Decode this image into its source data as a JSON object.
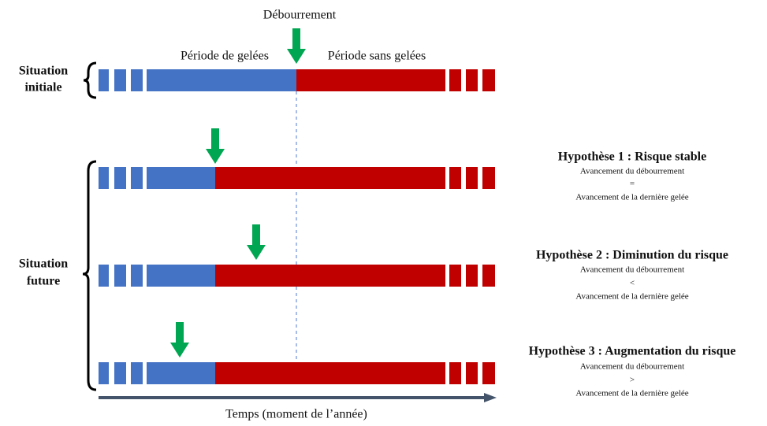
{
  "header": {
    "top_label": "Débourrement",
    "left_period": "Période de gelées",
    "right_period": "Période sans gelées"
  },
  "situations": [
    {
      "lines": [
        "Situation",
        "initiale"
      ]
    },
    {
      "lines": [
        "Situation",
        "future"
      ]
    }
  ],
  "hypotheses": [
    {
      "title": "Hypothèse 1 : Risque stable",
      "lines": [
        "Avancement du débourrement",
        "=",
        "Avancement de la dernière gelée"
      ]
    },
    {
      "title": "Hypothèse 2 : Diminution du risque",
      "lines": [
        "Avancement du débourrement",
        "<",
        "Avancement de la dernière gelée"
      ]
    },
    {
      "title": "Hypothèse 3 : Augmentation du risque",
      "lines": [
        "Avancement du débourrement",
        ">",
        "Avancement de la dernière gelée"
      ]
    }
  ],
  "axis_label": "Temps (moment de l’année)"
}
